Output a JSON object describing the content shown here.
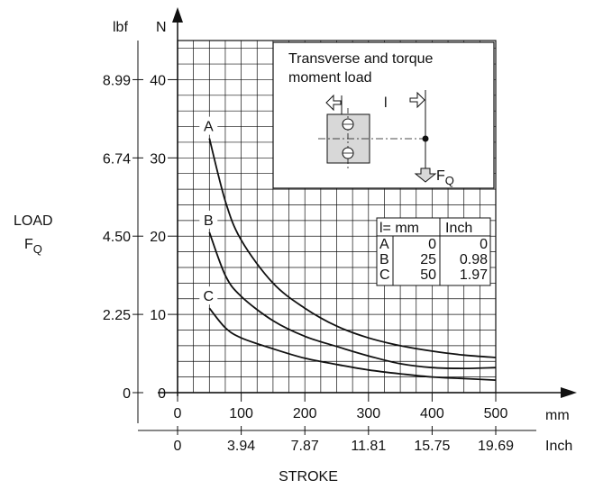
{
  "chart_data": {
    "type": "line",
    "title": "",
    "xlabel": "STROKE",
    "ylabel": "LOAD",
    "ylabel_symbol": "F",
    "ylabel_subscript": "Q",
    "x_unit_primary": "mm",
    "x_unit_secondary": "Inch",
    "y_unit_primary": "N",
    "y_unit_secondary": "lbf",
    "xlim": [
      0,
      500
    ],
    "ylim": [
      0,
      45
    ],
    "grid": true,
    "x_ticks": [
      {
        "mm": "0",
        "inch": "0"
      },
      {
        "mm": "100",
        "inch": "3.94"
      },
      {
        "mm": "200",
        "inch": "7.87"
      },
      {
        "mm": "300",
        "inch": "11.81"
      },
      {
        "mm": "400",
        "inch": "15.75"
      },
      {
        "mm": "500",
        "inch": "19.69"
      }
    ],
    "y_ticks": [
      {
        "n": "0",
        "lbf": "0"
      },
      {
        "n": "10",
        "lbf": "2.25"
      },
      {
        "n": "20",
        "lbf": "4.50"
      },
      {
        "n": "30",
        "lbf": "6.74"
      },
      {
        "n": "40",
        "lbf": "8.99"
      }
    ],
    "series": [
      {
        "name": "A",
        "points": [
          [
            50,
            32.5
          ],
          [
            75,
            24.5
          ],
          [
            100,
            19.5
          ],
          [
            150,
            14
          ],
          [
            200,
            10.8
          ],
          [
            250,
            8.5
          ],
          [
            300,
            7.0
          ],
          [
            350,
            6.0
          ],
          [
            400,
            5.3
          ],
          [
            450,
            4.8
          ],
          [
            500,
            4.5
          ]
        ]
      },
      {
        "name": "B",
        "points": [
          [
            50,
            20.5
          ],
          [
            75,
            15
          ],
          [
            100,
            12.3
          ],
          [
            150,
            9.2
          ],
          [
            200,
            7.2
          ],
          [
            250,
            5.9
          ],
          [
            300,
            4.7
          ],
          [
            350,
            3.7
          ],
          [
            400,
            3.2
          ],
          [
            450,
            3.1
          ],
          [
            500,
            3.2
          ]
        ]
      },
      {
        "name": "C",
        "points": [
          [
            50,
            10.8
          ],
          [
            75,
            8.3
          ],
          [
            100,
            7.0
          ],
          [
            150,
            5.6
          ],
          [
            200,
            4.4
          ],
          [
            250,
            3.6
          ],
          [
            300,
            2.9
          ],
          [
            350,
            2.4
          ],
          [
            400,
            2.0
          ],
          [
            450,
            1.8
          ],
          [
            500,
            1.6
          ]
        ]
      }
    ],
    "inset": {
      "title_line1": "Transverse and torque",
      "title_line2": "moment load",
      "dim_label": "l",
      "force_symbol": "F",
      "force_subscript": "Q"
    },
    "table": {
      "headers": [
        "l= mm",
        "Inch"
      ],
      "rows": [
        {
          "label": "A",
          "mm": "0",
          "inch": "0"
        },
        {
          "label": "B",
          "mm": "25",
          "inch": "0.98"
        },
        {
          "label": "C",
          "mm": "50",
          "inch": "1.97"
        }
      ]
    }
  }
}
